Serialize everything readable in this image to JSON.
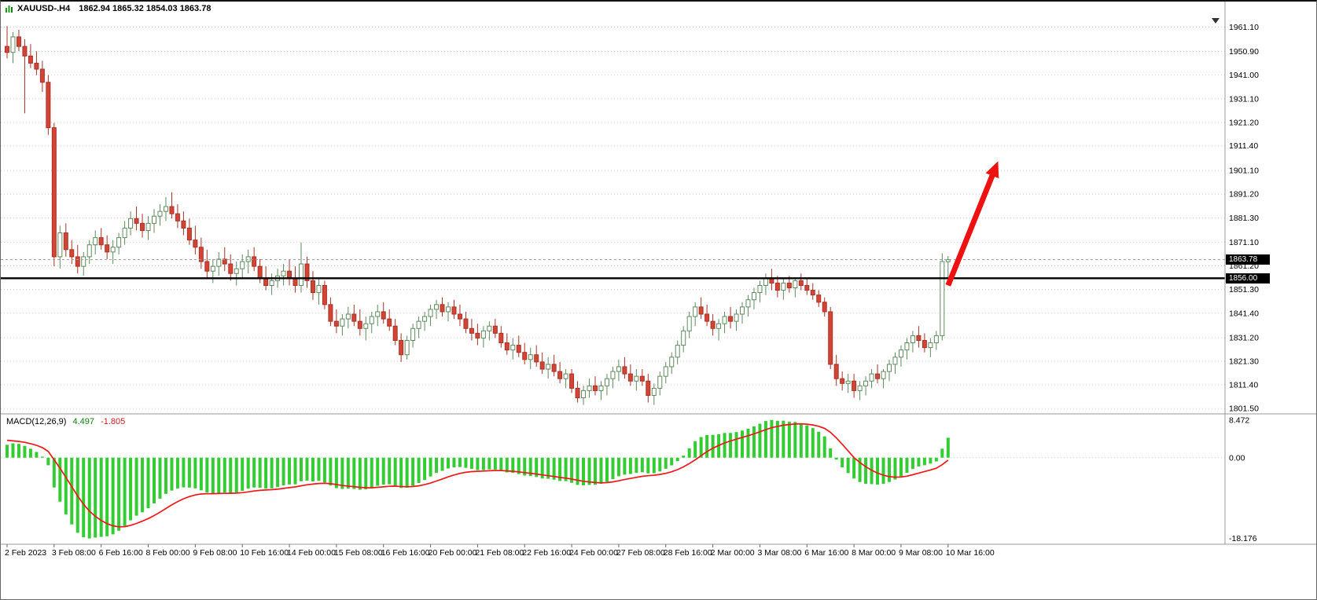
{
  "window": {
    "title_symbol": "XAUUSD-.H4",
    "title_ohlc": "1862.94 1865.32 1854.03 1863.78"
  },
  "price_axis": {
    "bid_badge": "1863.78",
    "line_badge": "1856.00"
  },
  "indicator_panel": {
    "label": "MACD(12,26,9)",
    "value_main": "4.497",
    "value_signal": "-1.805"
  },
  "icons": {
    "title_icon": "candlestick-chart-icon",
    "shift_marker": "chart-shift-triangle"
  },
  "colors": {
    "background": "#ffffff",
    "grid": "#c9c9c9",
    "bull_fill": "#ffffff",
    "bull_stroke": "#5f8a5f",
    "bear_fill": "#d24435",
    "bear_stroke": "#a93226",
    "macd_histogram": "#33cc33",
    "macd_signal": "#f01818",
    "hline": "#000000",
    "bid_line": "#999999",
    "separator": "#9a9a9a",
    "badge_bg": "#000000",
    "badge_fg": "#ffffff",
    "arrow": "#ee1111",
    "axis_text": "#000000"
  },
  "chart_data": {
    "type": "candlestick",
    "symbol": "XAUUSD",
    "timeframe": "H4",
    "title": "XAUUSD-.H4 1862.94 1865.32 1854.03 1863.78",
    "price_range": {
      "top": 1965.2,
      "bottom": 1799.6
    },
    "price_ticks": [
      {
        "label": "1961.10",
        "value": 1961.1
      },
      {
        "label": "1950.90",
        "value": 1950.9
      },
      {
        "label": "1941.00",
        "value": 1941.0
      },
      {
        "label": "1931.10",
        "value": 1931.1
      },
      {
        "label": "1921.20",
        "value": 1921.2
      },
      {
        "label": "1911.40",
        "value": 1911.4
      },
      {
        "label": "1901.10",
        "value": 1901.1
      },
      {
        "label": "1891.20",
        "value": 1891.2
      },
      {
        "label": "1881.30",
        "value": 1881.3
      },
      {
        "label": "1871.10",
        "value": 1871.1
      },
      {
        "label": "1861.20",
        "value": 1861.2
      },
      {
        "label": "1851.30",
        "value": 1851.3
      },
      {
        "label": "1841.40",
        "value": 1841.4
      },
      {
        "label": "1831.20",
        "value": 1831.2
      },
      {
        "label": "1821.30",
        "value": 1821.3
      },
      {
        "label": "1811.40",
        "value": 1811.4
      },
      {
        "label": "1801.50",
        "value": 1801.5
      }
    ],
    "hline": 1856.0,
    "bid": 1863.78,
    "x_label_every": 8,
    "x_labels": [
      "2 Feb 2023",
      "3 Feb 08:00",
      "6 Feb 16:00",
      "8 Feb 00:00",
      "9 Feb 08:00",
      "10 Feb 16:00",
      "14 Feb 00:00",
      "15 Feb 08:00",
      "16 Feb 16:00",
      "20 Feb 00:00",
      "21 Feb 08:00",
      "22 Feb 16:00",
      "24 Feb 00:00",
      "27 Feb 08:00",
      "28 Feb 16:00",
      "2 Mar 00:00",
      "3 Mar 08:00",
      "6 Mar 16:00",
      "8 Mar 00:00",
      "9 Mar 08:00",
      "10 Mar 16:00"
    ],
    "candles": [
      [
        1953,
        1961.5,
        1948,
        1950.5
      ],
      [
        1950.5,
        1959,
        1946,
        1957
      ],
      [
        1957,
        1960,
        1951,
        1953
      ],
      [
        1953,
        1956,
        1925,
        1949
      ],
      [
        1949,
        1954,
        1944,
        1946
      ],
      [
        1946,
        1951,
        1941,
        1943.5
      ],
      [
        1943.5,
        1947,
        1934,
        1938
      ],
      [
        1938,
        1941,
        1916,
        1919
      ],
      [
        1919,
        1921,
        1861,
        1865
      ],
      [
        1865,
        1878,
        1860,
        1875
      ],
      [
        1875,
        1879,
        1865,
        1868
      ],
      [
        1868,
        1872,
        1862,
        1865
      ],
      [
        1865,
        1870,
        1858,
        1861
      ],
      [
        1861,
        1867,
        1857,
        1865
      ],
      [
        1865,
        1872,
        1862,
        1870
      ],
      [
        1870,
        1876,
        1866,
        1873
      ],
      [
        1873,
        1877,
        1868,
        1870
      ],
      [
        1870,
        1874,
        1864,
        1867
      ],
      [
        1867,
        1872,
        1862,
        1869
      ],
      [
        1869,
        1875,
        1866,
        1873
      ],
      [
        1873,
        1880,
        1870,
        1877
      ],
      [
        1877,
        1884,
        1874,
        1881
      ],
      [
        1881,
        1886,
        1876,
        1879
      ],
      [
        1879,
        1883,
        1873,
        1876
      ],
      [
        1876,
        1882,
        1872,
        1879
      ],
      [
        1879,
        1885,
        1875,
        1882
      ],
      [
        1882,
        1887,
        1878,
        1884
      ],
      [
        1884,
        1890,
        1880,
        1886
      ],
      [
        1886,
        1892,
        1881,
        1883
      ],
      [
        1883,
        1887,
        1877,
        1880
      ],
      [
        1880,
        1884,
        1874,
        1877
      ],
      [
        1877,
        1881,
        1870,
        1872
      ],
      [
        1872,
        1878,
        1866,
        1869
      ],
      [
        1869,
        1873,
        1860,
        1863
      ],
      [
        1863,
        1868,
        1856,
        1859
      ],
      [
        1859,
        1864,
        1854,
        1861
      ],
      [
        1861,
        1867,
        1857,
        1864
      ],
      [
        1864,
        1869,
        1859,
        1862
      ],
      [
        1862,
        1866,
        1855,
        1858
      ],
      [
        1858,
        1863,
        1853,
        1860
      ],
      [
        1860,
        1866,
        1856,
        1863
      ],
      [
        1863,
        1868,
        1858,
        1865
      ],
      [
        1865,
        1869,
        1859,
        1861
      ],
      [
        1861,
        1864,
        1854,
        1856
      ],
      [
        1856,
        1861,
        1851,
        1853
      ],
      [
        1853,
        1858,
        1849,
        1855
      ],
      [
        1855,
        1860,
        1852,
        1857
      ],
      [
        1857,
        1862,
        1853,
        1859
      ],
      [
        1859,
        1864,
        1853,
        1856
      ],
      [
        1856,
        1861,
        1850,
        1853
      ],
      [
        1853,
        1871,
        1850,
        1862
      ],
      [
        1862,
        1865,
        1852,
        1855
      ],
      [
        1855,
        1859,
        1847,
        1850
      ],
      [
        1850,
        1856,
        1845,
        1853
      ],
      [
        1853,
        1855,
        1843,
        1845
      ],
      [
        1845,
        1848,
        1836,
        1838
      ],
      [
        1838,
        1843,
        1833,
        1836
      ],
      [
        1836,
        1841,
        1832,
        1839
      ],
      [
        1839,
        1844,
        1835,
        1841
      ],
      [
        1841,
        1845,
        1836,
        1838
      ],
      [
        1838,
        1843,
        1832,
        1835
      ],
      [
        1835,
        1840,
        1830,
        1837
      ],
      [
        1837,
        1842,
        1833,
        1840
      ],
      [
        1840,
        1845,
        1836,
        1842
      ],
      [
        1842,
        1846,
        1837,
        1839
      ],
      [
        1839,
        1843,
        1834,
        1836
      ],
      [
        1836,
        1839,
        1828,
        1830
      ],
      [
        1830,
        1833,
        1821,
        1824
      ],
      [
        1824,
        1832,
        1822,
        1830
      ],
      [
        1830,
        1837,
        1827,
        1835
      ],
      [
        1835,
        1840,
        1831,
        1838
      ],
      [
        1838,
        1842,
        1834,
        1840
      ],
      [
        1840,
        1845,
        1836,
        1843
      ],
      [
        1843,
        1847,
        1839,
        1845
      ],
      [
        1845,
        1848,
        1840,
        1842
      ],
      [
        1842,
        1846,
        1838,
        1844
      ],
      [
        1844,
        1847,
        1839,
        1841
      ],
      [
        1841,
        1845,
        1836,
        1839
      ],
      [
        1839,
        1842,
        1833,
        1835
      ],
      [
        1835,
        1839,
        1830,
        1833
      ],
      [
        1833,
        1837,
        1828,
        1831
      ],
      [
        1831,
        1836,
        1827,
        1834
      ],
      [
        1834,
        1838,
        1830,
        1836
      ],
      [
        1836,
        1839,
        1831,
        1833
      ],
      [
        1833,
        1836,
        1827,
        1829
      ],
      [
        1829,
        1833,
        1824,
        1826
      ],
      [
        1826,
        1831,
        1822,
        1828
      ],
      [
        1828,
        1832,
        1823,
        1825
      ],
      [
        1825,
        1829,
        1820,
        1822
      ],
      [
        1822,
        1827,
        1818,
        1824
      ],
      [
        1824,
        1828,
        1819,
        1821
      ],
      [
        1821,
        1825,
        1816,
        1818
      ],
      [
        1818,
        1823,
        1814,
        1820
      ],
      [
        1820,
        1824,
        1815,
        1817
      ],
      [
        1817,
        1821,
        1812,
        1814
      ],
      [
        1814,
        1818,
        1810,
        1816
      ],
      [
        1816,
        1818,
        1808,
        1810
      ],
      [
        1810,
        1813,
        1804,
        1806
      ],
      [
        1806,
        1811,
        1803,
        1809
      ],
      [
        1809,
        1814,
        1806,
        1811
      ],
      [
        1811,
        1815,
        1807,
        1809
      ],
      [
        1809,
        1813,
        1805,
        1811
      ],
      [
        1811,
        1816,
        1807,
        1814
      ],
      [
        1814,
        1819,
        1810,
        1817
      ],
      [
        1817,
        1822,
        1813,
        1819
      ],
      [
        1819,
        1823,
        1814,
        1816
      ],
      [
        1816,
        1820,
        1811,
        1813
      ],
      [
        1813,
        1818,
        1809,
        1815
      ],
      [
        1815,
        1818,
        1811,
        1813
      ],
      [
        1813,
        1816,
        1804,
        1807
      ],
      [
        1807,
        1812,
        1803,
        1810
      ],
      [
        1810,
        1817,
        1807,
        1815
      ],
      [
        1815,
        1821,
        1812,
        1819
      ],
      [
        1819,
        1825,
        1816,
        1823
      ],
      [
        1823,
        1830,
        1820,
        1828
      ],
      [
        1828,
        1836,
        1825,
        1834
      ],
      [
        1834,
        1842,
        1831,
        1840
      ],
      [
        1840,
        1846,
        1836,
        1844
      ],
      [
        1844,
        1848,
        1839,
        1841
      ],
      [
        1841,
        1845,
        1836,
        1838
      ],
      [
        1838,
        1841,
        1832,
        1835
      ],
      [
        1835,
        1839,
        1830,
        1837
      ],
      [
        1837,
        1842,
        1833,
        1840
      ],
      [
        1840,
        1844,
        1835,
        1838
      ],
      [
        1838,
        1843,
        1834,
        1841
      ],
      [
        1841,
        1846,
        1837,
        1844
      ],
      [
        1844,
        1849,
        1840,
        1847
      ],
      [
        1847,
        1852,
        1843,
        1850
      ],
      [
        1850,
        1855,
        1846,
        1853
      ],
      [
        1853,
        1858,
        1849,
        1856
      ],
      [
        1856,
        1860,
        1851,
        1854
      ],
      [
        1854,
        1857,
        1848,
        1851
      ],
      [
        1851,
        1856,
        1847,
        1854
      ],
      [
        1854,
        1857,
        1850,
        1852
      ],
      [
        1852,
        1856,
        1848,
        1855
      ],
      [
        1855,
        1858,
        1851,
        1853
      ],
      [
        1853,
        1856,
        1849,
        1851
      ],
      [
        1851,
        1854,
        1847,
        1849
      ],
      [
        1849,
        1851,
        1844,
        1846
      ],
      [
        1846,
        1848,
        1840,
        1842
      ],
      [
        1842,
        1844,
        1818,
        1820
      ],
      [
        1820,
        1824,
        1811,
        1814
      ],
      [
        1814,
        1817,
        1809,
        1812
      ],
      [
        1812,
        1816,
        1808,
        1813
      ],
      [
        1813,
        1816,
        1806,
        1809
      ],
      [
        1809,
        1813,
        1805,
        1811
      ],
      [
        1811,
        1815,
        1807,
        1813
      ],
      [
        1813,
        1818,
        1810,
        1816
      ],
      [
        1816,
        1820,
        1812,
        1814
      ],
      [
        1814,
        1818,
        1810,
        1817
      ],
      [
        1817,
        1822,
        1813,
        1820
      ],
      [
        1820,
        1825,
        1816,
        1823
      ],
      [
        1823,
        1828,
        1819,
        1826
      ],
      [
        1826,
        1831,
        1822,
        1829
      ],
      [
        1829,
        1834,
        1825,
        1832
      ],
      [
        1832,
        1836,
        1827,
        1830
      ],
      [
        1830,
        1833,
        1825,
        1827
      ],
      [
        1827,
        1831,
        1823,
        1829
      ],
      [
        1829,
        1834,
        1826,
        1832
      ],
      [
        1832,
        1866.5,
        1830,
        1863
      ],
      [
        1862.94,
        1865.32,
        1854.03,
        1863.78
      ]
    ],
    "macd": {
      "name": "MACD",
      "fast": 12,
      "slow": 26,
      "signal": 9,
      "seed_fast": 1950.5,
      "seed_slow": 1947.5,
      "seed_signal": 4.0,
      "range": {
        "top": 9.5,
        "bottom": -19.3
      },
      "ticks": [
        {
          "label": "8.472",
          "value": 8.472
        },
        {
          "label": "0.00",
          "value": 0
        },
        {
          "label": "-18.176",
          "value": -18.176
        }
      ]
    },
    "annotation_arrow": {
      "from_candle": 160,
      "from_price": 1853,
      "to_candle": 168.5,
      "to_price": 1905,
      "color": "#ee1111"
    }
  }
}
